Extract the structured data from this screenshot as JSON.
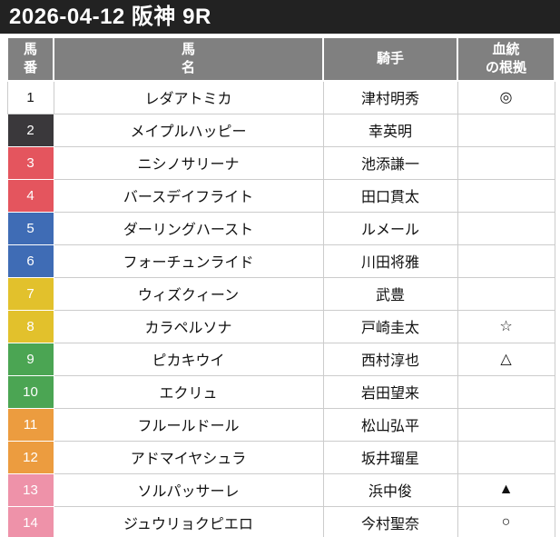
{
  "title": "2026-04-12 阪神 9R",
  "colors": {
    "title_bar_bg": "#222222",
    "header_bg": "#808080",
    "grid_border": "#cccccc",
    "cell_separator": "#ffffff",
    "waku": {
      "white": {
        "bg": "#ffffff",
        "text": "#111111"
      },
      "black": {
        "bg": "#3a383b",
        "text": "#ffffff"
      },
      "red": {
        "bg": "#e4555e",
        "text": "#ffffff"
      },
      "blue": {
        "bg": "#3f6cb5",
        "text": "#ffffff"
      },
      "yellow": {
        "bg": "#e2c12c",
        "text": "#ffffff"
      },
      "green": {
        "bg": "#4ba553",
        "text": "#ffffff"
      },
      "orange": {
        "bg": "#ec9c3f",
        "text": "#ffffff"
      },
      "pink": {
        "bg": "#ee92a9",
        "text": "#ffffff"
      }
    }
  },
  "table": {
    "headers": [
      {
        "id": "umaban",
        "label": "馬\n番"
      },
      {
        "id": "bamei",
        "label": "馬\n名"
      },
      {
        "id": "kishu",
        "label": "騎手"
      },
      {
        "id": "konkyo",
        "label": "血統\nの根拠"
      }
    ],
    "rows": [
      {
        "num": "1",
        "name": "レダアトミカ",
        "jockey": "津村明秀",
        "mark": "◎",
        "waku": "white"
      },
      {
        "num": "2",
        "name": "メイプルハッピー",
        "jockey": "幸英明",
        "mark": "",
        "waku": "black"
      },
      {
        "num": "3",
        "name": "ニシノサリーナ",
        "jockey": "池添謙一",
        "mark": "",
        "waku": "red"
      },
      {
        "num": "4",
        "name": "バースデイフライト",
        "jockey": "田口貫太",
        "mark": "",
        "waku": "red"
      },
      {
        "num": "5",
        "name": "ダーリングハースト",
        "jockey": "ルメール",
        "mark": "",
        "waku": "blue"
      },
      {
        "num": "6",
        "name": "フォーチュンライド",
        "jockey": "川田将雅",
        "mark": "",
        "waku": "blue"
      },
      {
        "num": "7",
        "name": "ウィズクィーン",
        "jockey": "武豊",
        "mark": "",
        "waku": "yellow"
      },
      {
        "num": "8",
        "name": "カラペルソナ",
        "jockey": "戸崎圭太",
        "mark": "☆",
        "waku": "yellow"
      },
      {
        "num": "9",
        "name": "ピカキウイ",
        "jockey": "西村淳也",
        "mark": "△",
        "waku": "green"
      },
      {
        "num": "10",
        "name": "エクリュ",
        "jockey": "岩田望来",
        "mark": "",
        "waku": "green"
      },
      {
        "num": "11",
        "name": "フルールドール",
        "jockey": "松山弘平",
        "mark": "",
        "waku": "orange"
      },
      {
        "num": "12",
        "name": "アドマイヤシュラ",
        "jockey": "坂井瑠星",
        "mark": "",
        "waku": "orange"
      },
      {
        "num": "13",
        "name": "ソルパッサーレ",
        "jockey": "浜中俊",
        "mark": "▲",
        "waku": "pink"
      },
      {
        "num": "14",
        "name": "ジュウリョクピエロ",
        "jockey": "今村聖奈",
        "mark": "○",
        "waku": "pink"
      }
    ]
  }
}
